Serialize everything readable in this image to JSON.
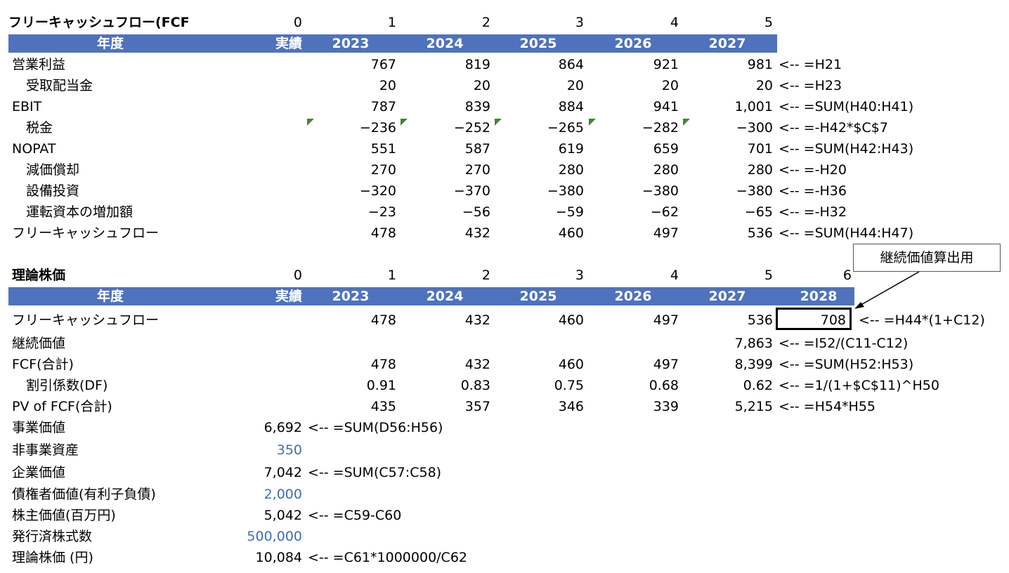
{
  "fcf_section": {
    "title": "フリーキャッシュフロー(FCF",
    "periods": [
      "0",
      "1",
      "2",
      "3",
      "4",
      "5"
    ],
    "header": [
      "年度",
      "実績",
      "2023",
      "2024",
      "2025",
      "2026",
      "2027"
    ],
    "rows": [
      {
        "label": "営業利益",
        "values": [
          "767",
          "819",
          "864",
          "921",
          "981"
        ],
        "note": "<-- =H21"
      },
      {
        "label": "受取配当金",
        "values": [
          "20",
          "20",
          "20",
          "20",
          "20"
        ],
        "note": "<-- =H23"
      },
      {
        "label": "EBIT",
        "values": [
          "787",
          "839",
          "884",
          "941",
          "1,001"
        ],
        "note": "<-- =SUM(H40:H41)"
      },
      {
        "label": "税金",
        "values": [
          "−236",
          "−252",
          "−265",
          "−282",
          "−300"
        ],
        "note": "<-- =-H42*$C$7"
      },
      {
        "label": "NOPAT",
        "values": [
          "551",
          "587",
          "619",
          "659",
          "701"
        ],
        "note": "<-- =SUM(H42:H43)"
      },
      {
        "label": "減価償却",
        "values": [
          "270",
          "270",
          "280",
          "280",
          "280"
        ],
        "note": "<-- =-H20"
      },
      {
        "label": "設備投資",
        "values": [
          "−320",
          "−370",
          "−380",
          "−380",
          "−380"
        ],
        "note": "<-- =-H36"
      },
      {
        "label": "運転資本の増加額",
        "values": [
          "−23",
          "−56",
          "−59",
          "−62",
          "−65"
        ],
        "note": "<-- =-H32"
      },
      {
        "label": "フリーキャッシュフロー",
        "values": [
          "478",
          "432",
          "460",
          "497",
          "536"
        ],
        "note": "<-- =SUM(H44:H47)"
      }
    ]
  },
  "value_section": {
    "title": "理論株価",
    "periods": [
      "0",
      "1",
      "2",
      "3",
      "4",
      "5",
      "6"
    ],
    "header": [
      "年度",
      "実績",
      "2023",
      "2024",
      "2025",
      "2026",
      "2027",
      "2028"
    ],
    "callout": "継続価値算出用",
    "rows": [
      {
        "label": "フリーキャッシュフロー",
        "values": [
          "478",
          "432",
          "460",
          "497",
          "536",
          "708"
        ],
        "note": "<-- =H44*(1+C12)"
      },
      {
        "label": "継続価値",
        "values": [
          "",
          "",
          "",
          "",
          "7,863"
        ],
        "note": "<-- =I52/(C11-C12)"
      },
      {
        "label": "FCF(合計)",
        "values": [
          "478",
          "432",
          "460",
          "497",
          "8,399"
        ],
        "note": "<-- =SUM(H52:H53)"
      },
      {
        "label": "割引係数(DF)",
        "values": [
          "0.91",
          "0.83",
          "0.75",
          "0.68",
          "0.62"
        ],
        "note": "<-- =1/(1+$C$11)^H50"
      },
      {
        "label": "PV of FCF(合計)",
        "values": [
          "435",
          "357",
          "346",
          "339",
          "5,215"
        ],
        "note": "<-- =H54*H55"
      }
    ],
    "summary": [
      {
        "label": "事業価値",
        "value": "6,692",
        "note": "<-- =SUM(D56:H56)"
      },
      {
        "label": "非事業資産",
        "value": "350",
        "note": ""
      },
      {
        "label": "企業価値",
        "value": "7,042",
        "note": "<-- =SUM(C57:C58)"
      },
      {
        "label": "債権者価値(有利子負債)",
        "value": "2,000",
        "note": ""
      },
      {
        "label": "株主価値(百万円)",
        "value": "5,042",
        "note": "<-- =C59-C60"
      },
      {
        "label": "発行済株式数",
        "value": "500,000",
        "note": ""
      },
      {
        "label": "理論株価 (円)",
        "value": "10,084",
        "note": "<-- =C61*1000000/C62"
      }
    ]
  },
  "colors": {
    "header_bg": "#4f72bd",
    "input_blue": "#3f6fb0",
    "error_flag": "#3d8a2c"
  }
}
